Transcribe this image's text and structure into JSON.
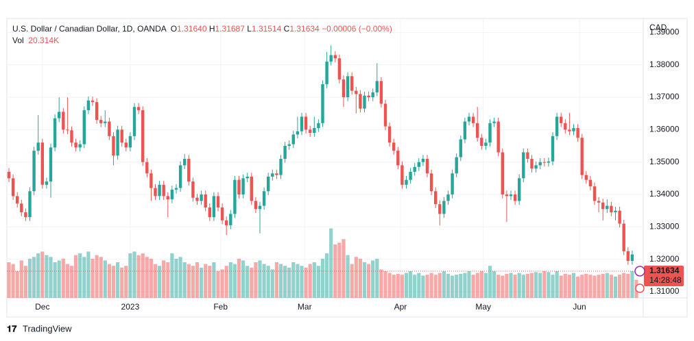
{
  "chart_data": {
    "type": "candlestick",
    "title": "U.S. Dollar / Canadian Dollar, 1D, OANDA",
    "legend": {
      "open_label": "O",
      "open": "1.31640",
      "high_label": "H",
      "high": "1.31687",
      "low_label": "L",
      "low": "1.31514",
      "close_label": "C",
      "close": "1.31634",
      "change": "−0.00006 (−0.00%)",
      "volume_label": "Vol",
      "volume": "20.314K"
    },
    "currency": "CAD",
    "last_price_label": "1.31634",
    "countdown": "14:28:48",
    "up_color": "#26a69a",
    "down_color": "#ef5350",
    "grid": true,
    "ylim": [
      1.3081,
      1.3943
    ],
    "yticks": [
      {
        "value": 1.31,
        "label": "1.31000"
      },
      {
        "value": 1.32,
        "label": "1.32000"
      },
      {
        "value": 1.33,
        "label": "1.33000"
      },
      {
        "value": 1.34,
        "label": "1.34000"
      },
      {
        "value": 1.35,
        "label": "1.35000"
      },
      {
        "value": 1.36,
        "label": "1.36000"
      },
      {
        "value": 1.37,
        "label": "1.37000"
      },
      {
        "value": 1.38,
        "label": "1.38000"
      },
      {
        "value": 1.39,
        "label": "1.39000"
      }
    ],
    "xticks": [
      {
        "value": 8,
        "label": "Dec"
      },
      {
        "value": 29,
        "label": "2023"
      },
      {
        "value": 50.6,
        "label": "Feb"
      },
      {
        "value": 70.7,
        "label": "Mar"
      },
      {
        "value": 93.6,
        "label": "Apr"
      },
      {
        "value": 113.4,
        "label": "May"
      },
      {
        "value": 136.4,
        "label": "Jun"
      }
    ],
    "ohlc": [
      [
        1.347,
        1.3482,
        1.3438,
        1.345
      ],
      [
        1.345,
        1.3462,
        1.3383,
        1.3395
      ],
      [
        1.3395,
        1.3407,
        1.336,
        1.3372
      ],
      [
        1.3372,
        1.3384,
        1.3333,
        1.3345
      ],
      [
        1.3345,
        1.3357,
        1.3318,
        1.333
      ],
      [
        1.333,
        1.3422,
        1.3318,
        1.341
      ],
      [
        1.341,
        1.3547,
        1.3398,
        1.3535
      ],
      [
        1.3535,
        1.3645,
        1.3523,
        1.356
      ],
      [
        1.356,
        1.3572,
        1.3418,
        1.343
      ],
      [
        1.343,
        1.3452,
        1.3418,
        1.344
      ],
      [
        1.344,
        1.3557,
        1.339,
        1.3545
      ],
      [
        1.3545,
        1.3647,
        1.3533,
        1.3635
      ],
      [
        1.3635,
        1.37,
        1.3623,
        1.3655
      ],
      [
        1.3655,
        1.3667,
        1.3588,
        1.36
      ],
      [
        1.36,
        1.37,
        1.3586,
        1.3598
      ],
      [
        1.3598,
        1.361,
        1.3548,
        1.356
      ],
      [
        1.356,
        1.3572,
        1.3533,
        1.3545
      ],
      [
        1.3545,
        1.3567,
        1.3533,
        1.3555
      ],
      [
        1.3555,
        1.3672,
        1.3543,
        1.366
      ],
      [
        1.366,
        1.3702,
        1.3648,
        1.369
      ],
      [
        1.369,
        1.3702,
        1.3673,
        1.3685
      ],
      [
        1.3685,
        1.3697,
        1.3618,
        1.363
      ],
      [
        1.363,
        1.3642,
        1.3608,
        1.362
      ],
      [
        1.362,
        1.366,
        1.3608,
        1.3625
      ],
      [
        1.3625,
        1.3637,
        1.3568,
        1.358
      ],
      [
        1.358,
        1.3592,
        1.349,
        1.352
      ],
      [
        1.352,
        1.3612,
        1.3508,
        1.36
      ],
      [
        1.36,
        1.3612,
        1.3548,
        1.356
      ],
      [
        1.356,
        1.3572,
        1.3533,
        1.3545
      ],
      [
        1.3545,
        1.3592,
        1.3533,
        1.358
      ],
      [
        1.358,
        1.3682,
        1.3568,
        1.367
      ],
      [
        1.367,
        1.3682,
        1.3648,
        1.366
      ],
      [
        1.366,
        1.3672,
        1.3488,
        1.35
      ],
      [
        1.35,
        1.3512,
        1.3453,
        1.3465
      ],
      [
        1.3465,
        1.3477,
        1.338,
        1.342
      ],
      [
        1.342,
        1.3432,
        1.3383,
        1.3395
      ],
      [
        1.3395,
        1.3442,
        1.3383,
        1.343
      ],
      [
        1.343,
        1.3442,
        1.3383,
        1.3395
      ],
      [
        1.3395,
        1.3407,
        1.333,
        1.3385
      ],
      [
        1.3385,
        1.3427,
        1.3373,
        1.3415
      ],
      [
        1.3415,
        1.3432,
        1.3403,
        1.342
      ],
      [
        1.342,
        1.3502,
        1.3408,
        1.349
      ],
      [
        1.349,
        1.3525,
        1.3478,
        1.351
      ],
      [
        1.351,
        1.3522,
        1.3428,
        1.344
      ],
      [
        1.344,
        1.3452,
        1.3378,
        1.339
      ],
      [
        1.339,
        1.3402,
        1.3368,
        1.338
      ],
      [
        1.338,
        1.3412,
        1.3368,
        1.34
      ],
      [
        1.34,
        1.3412,
        1.3348,
        1.336
      ],
      [
        1.336,
        1.3372,
        1.3318,
        1.333
      ],
      [
        1.333,
        1.3407,
        1.3318,
        1.3395
      ],
      [
        1.3395,
        1.3407,
        1.3348,
        1.336
      ],
      [
        1.336,
        1.3372,
        1.3308,
        1.332
      ],
      [
        1.332,
        1.3332,
        1.3275,
        1.3305
      ],
      [
        1.3305,
        1.3352,
        1.3293,
        1.334
      ],
      [
        1.334,
        1.3457,
        1.3328,
        1.3445
      ],
      [
        1.3445,
        1.3457,
        1.3388,
        1.34
      ],
      [
        1.34,
        1.3462,
        1.3388,
        1.345
      ],
      [
        1.345,
        1.3467,
        1.3438,
        1.3455
      ],
      [
        1.3455,
        1.3467,
        1.3368,
        1.338
      ],
      [
        1.338,
        1.3392,
        1.3343,
        1.3355
      ],
      [
        1.3355,
        1.3377,
        1.328,
        1.3365
      ],
      [
        1.3365,
        1.3422,
        1.3353,
        1.341
      ],
      [
        1.341,
        1.3467,
        1.3398,
        1.3455
      ],
      [
        1.3455,
        1.3477,
        1.3443,
        1.3465
      ],
      [
        1.3465,
        1.3477,
        1.3448,
        1.346
      ],
      [
        1.346,
        1.3522,
        1.3448,
        1.351
      ],
      [
        1.351,
        1.3562,
        1.3498,
        1.355
      ],
      [
        1.355,
        1.3567,
        1.3538,
        1.3555
      ],
      [
        1.3555,
        1.3597,
        1.3543,
        1.3585
      ],
      [
        1.3585,
        1.364,
        1.3573,
        1.3595
      ],
      [
        1.3595,
        1.3652,
        1.3583,
        1.364
      ],
      [
        1.364,
        1.3652,
        1.3588,
        1.36
      ],
      [
        1.36,
        1.3612,
        1.3578,
        1.359
      ],
      [
        1.359,
        1.364,
        1.3578,
        1.3605
      ],
      [
        1.3605,
        1.3632,
        1.3593,
        1.362
      ],
      [
        1.362,
        1.3752,
        1.3608,
        1.374
      ],
      [
        1.374,
        1.384,
        1.3728,
        1.381
      ],
      [
        1.381,
        1.386,
        1.3798,
        1.383
      ],
      [
        1.383,
        1.3842,
        1.3808,
        1.382
      ],
      [
        1.382,
        1.3832,
        1.3743,
        1.3755
      ],
      [
        1.3755,
        1.3767,
        1.367,
        1.37
      ],
      [
        1.37,
        1.3777,
        1.3688,
        1.3765
      ],
      [
        1.3765,
        1.3777,
        1.3708,
        1.372
      ],
      [
        1.372,
        1.3732,
        1.365,
        1.371
      ],
      [
        1.371,
        1.3722,
        1.3653,
        1.3665
      ],
      [
        1.3665,
        1.3717,
        1.3653,
        1.3705
      ],
      [
        1.3705,
        1.3717,
        1.3688,
        1.37
      ],
      [
        1.37,
        1.3727,
        1.3688,
        1.3715
      ],
      [
        1.3715,
        1.3805,
        1.3703,
        1.375
      ],
      [
        1.375,
        1.3762,
        1.3668,
        1.368
      ],
      [
        1.368,
        1.3692,
        1.3598,
        1.361
      ],
      [
        1.361,
        1.3622,
        1.3548,
        1.356
      ],
      [
        1.356,
        1.3572,
        1.3523,
        1.3535
      ],
      [
        1.3535,
        1.3547,
        1.3478,
        1.349
      ],
      [
        1.349,
        1.3502,
        1.3418,
        1.343
      ],
      [
        1.343,
        1.3457,
        1.3418,
        1.3445
      ],
      [
        1.3445,
        1.3482,
        1.3433,
        1.347
      ],
      [
        1.347,
        1.3497,
        1.3458,
        1.3485
      ],
      [
        1.3485,
        1.3512,
        1.3473,
        1.35
      ],
      [
        1.35,
        1.3522,
        1.3488,
        1.351
      ],
      [
        1.351,
        1.3522,
        1.3453,
        1.3465
      ],
      [
        1.3465,
        1.3477,
        1.3398,
        1.341
      ],
      [
        1.341,
        1.3422,
        1.3358,
        1.337
      ],
      [
        1.337,
        1.3382,
        1.3305,
        1.334
      ],
      [
        1.334,
        1.3392,
        1.3328,
        1.338
      ],
      [
        1.338,
        1.3412,
        1.3368,
        1.34
      ],
      [
        1.34,
        1.3477,
        1.3388,
        1.3465
      ],
      [
        1.3465,
        1.3527,
        1.3453,
        1.3515
      ],
      [
        1.3515,
        1.3582,
        1.3503,
        1.357
      ],
      [
        1.357,
        1.3637,
        1.3558,
        1.3625
      ],
      [
        1.3625,
        1.3652,
        1.3613,
        1.364
      ],
      [
        1.364,
        1.3652,
        1.3608,
        1.362
      ],
      [
        1.362,
        1.367,
        1.3563,
        1.3575
      ],
      [
        1.3575,
        1.3587,
        1.3538,
        1.355
      ],
      [
        1.355,
        1.3572,
        1.3538,
        1.356
      ],
      [
        1.356,
        1.3632,
        1.3548,
        1.362
      ],
      [
        1.362,
        1.3637,
        1.3608,
        1.3625
      ],
      [
        1.3625,
        1.3637,
        1.3518,
        1.353
      ],
      [
        1.353,
        1.3542,
        1.3388,
        1.34
      ],
      [
        1.34,
        1.3412,
        1.3315,
        1.3395
      ],
      [
        1.3395,
        1.3412,
        1.3383,
        1.34
      ],
      [
        1.34,
        1.3412,
        1.3368,
        1.338
      ],
      [
        1.338,
        1.3462,
        1.3368,
        1.345
      ],
      [
        1.345,
        1.3542,
        1.3438,
        1.353
      ],
      [
        1.353,
        1.3542,
        1.3498,
        1.351
      ],
      [
        1.351,
        1.3522,
        1.3468,
        1.348
      ],
      [
        1.348,
        1.3502,
        1.3468,
        1.349
      ],
      [
        1.349,
        1.3512,
        1.3478,
        1.35
      ],
      [
        1.35,
        1.3512,
        1.3486,
        1.3498
      ],
      [
        1.3498,
        1.3514,
        1.3486,
        1.3502
      ],
      [
        1.3502,
        1.3592,
        1.349,
        1.358
      ],
      [
        1.358,
        1.3652,
        1.3568,
        1.364
      ],
      [
        1.364,
        1.3652,
        1.3608,
        1.362
      ],
      [
        1.362,
        1.3632,
        1.3588,
        1.36
      ],
      [
        1.36,
        1.3652,
        1.3583,
        1.3595
      ],
      [
        1.3595,
        1.3617,
        1.3583,
        1.3605
      ],
      [
        1.3605,
        1.3617,
        1.3563,
        1.3575
      ],
      [
        1.3575,
        1.3587,
        1.3448,
        1.346
      ],
      [
        1.346,
        1.3472,
        1.3433,
        1.3445
      ],
      [
        1.3445,
        1.3457,
        1.3413,
        1.3425
      ],
      [
        1.3425,
        1.3437,
        1.3368,
        1.338
      ],
      [
        1.338,
        1.3392,
        1.3345,
        1.3375
      ],
      [
        1.3375,
        1.3387,
        1.332,
        1.3355
      ],
      [
        1.3355,
        1.3385,
        1.3343,
        1.3365
      ],
      [
        1.3365,
        1.3377,
        1.3333,
        1.3345
      ],
      [
        1.3345,
        1.3362,
        1.332,
        1.335
      ],
      [
        1.335,
        1.3362,
        1.3298,
        1.331
      ],
      [
        1.331,
        1.3322,
        1.3213,
        1.3225
      ],
      [
        1.3225,
        1.3237,
        1.3183,
        1.3195
      ],
      [
        1.3195,
        1.3227,
        1.3183,
        1.3215
      ],
      [
        1.3164,
        1.31687,
        1.31514,
        1.31634
      ]
    ],
    "volume": [
      40,
      38,
      30,
      42,
      36,
      44,
      46,
      50,
      52,
      48,
      46,
      40,
      42,
      44,
      38,
      36,
      48,
      50,
      46,
      52,
      44,
      48,
      46,
      42,
      38,
      36,
      40,
      34,
      36,
      50,
      52,
      48,
      50,
      46,
      44,
      38,
      36,
      42,
      40,
      50,
      44,
      46,
      40,
      38,
      36,
      40,
      34,
      38,
      36,
      40,
      30,
      32,
      36,
      40,
      38,
      44,
      42,
      36,
      34,
      40,
      42,
      38,
      36,
      32,
      40,
      38,
      36,
      34,
      40,
      38,
      36,
      34,
      38,
      40,
      36,
      44,
      50,
      78,
      60,
      62,
      66,
      48,
      38,
      46,
      44,
      40,
      38,
      42,
      44,
      32,
      30,
      28,
      26,
      27,
      26,
      28,
      30,
      26,
      28,
      25,
      26,
      28,
      26,
      28,
      30,
      27,
      25,
      26,
      27,
      28,
      30,
      26,
      28,
      30,
      28,
      36,
      30,
      26,
      25,
      27,
      28,
      26,
      28,
      26,
      27,
      28,
      29,
      28,
      30,
      29,
      26,
      30,
      25,
      27,
      26,
      28,
      24,
      26,
      27,
      26,
      25,
      26,
      27,
      28,
      26,
      24,
      26,
      28,
      27,
      30,
      20.314
    ]
  },
  "footer": {
    "brand": "TradingView"
  }
}
